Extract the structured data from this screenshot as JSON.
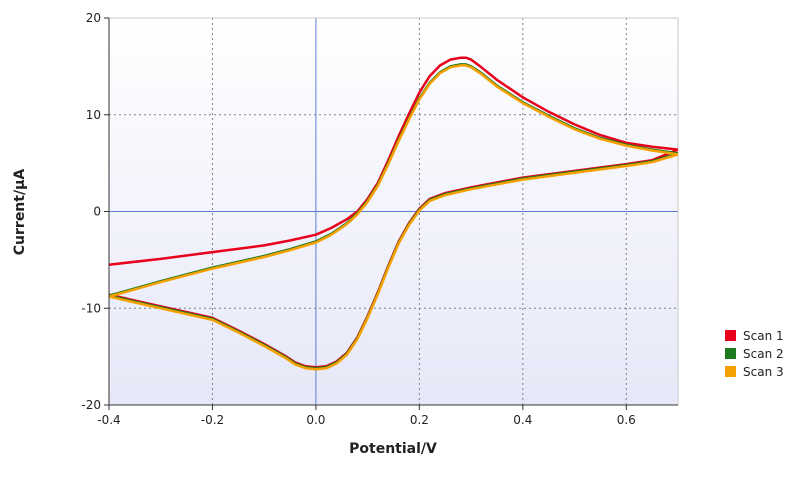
{
  "chart_data": {
    "type": "line",
    "title": "",
    "xlabel": "Potential/V",
    "ylabel": "Current/μA",
    "xlim": [
      -0.4,
      0.7
    ],
    "ylim": [
      -20,
      20
    ],
    "xticks": [
      -0.4,
      -0.2,
      0.0,
      0.2,
      0.4,
      0.6
    ],
    "yticks": [
      -20,
      -10,
      0,
      10,
      20
    ],
    "xtick_labels": [
      "-0.4",
      "-0.2",
      "0.0",
      "0.2",
      "0.4",
      "0.6"
    ],
    "ytick_labels": [
      "-20",
      "-10",
      "0",
      "10",
      "20"
    ],
    "grid": true,
    "zero_lines": true,
    "legend_position": "right",
    "series": [
      {
        "name": "Scan 1",
        "color": "#e8001c",
        "x": [
          -0.4,
          -0.3,
          -0.2,
          -0.1,
          -0.05,
          0.0,
          0.03,
          0.06,
          0.08,
          0.1,
          0.12,
          0.14,
          0.16,
          0.18,
          0.2,
          0.22,
          0.24,
          0.26,
          0.28,
          0.29,
          0.3,
          0.32,
          0.35,
          0.4,
          0.45,
          0.5,
          0.55,
          0.6,
          0.65,
          0.7,
          0.65,
          0.6,
          0.5,
          0.4,
          0.3,
          0.25,
          0.22,
          0.2,
          0.18,
          0.16,
          0.14,
          0.12,
          0.1,
          0.08,
          0.06,
          0.04,
          0.02,
          0.0,
          -0.02,
          -0.04,
          -0.06,
          -0.1,
          -0.15,
          -0.2,
          -0.3,
          -0.4
        ],
        "y": [
          -5.5,
          -4.9,
          -4.2,
          -3.5,
          -3.0,
          -2.4,
          -1.7,
          -0.8,
          0.0,
          1.3,
          3.0,
          5.3,
          7.8,
          10.1,
          12.3,
          14.0,
          15.1,
          15.7,
          15.9,
          15.9,
          15.7,
          14.9,
          13.6,
          11.8,
          10.3,
          9.0,
          7.9,
          7.1,
          6.7,
          6.4,
          5.3,
          4.9,
          4.2,
          3.5,
          2.5,
          1.9,
          1.3,
          0.3,
          -1.2,
          -3.1,
          -5.6,
          -8.3,
          -10.8,
          -13.0,
          -14.6,
          -15.5,
          -16.0,
          -16.1,
          -16.0,
          -15.6,
          -14.9,
          -13.7,
          -12.3,
          -11.0,
          -9.8,
          -8.6
        ]
      },
      {
        "name": "Scan 2",
        "color": "#1f7a1f",
        "x": [
          -0.4,
          -0.3,
          -0.2,
          -0.1,
          -0.05,
          0.0,
          0.03,
          0.06,
          0.08,
          0.1,
          0.12,
          0.14,
          0.16,
          0.18,
          0.2,
          0.22,
          0.24,
          0.26,
          0.28,
          0.29,
          0.3,
          0.32,
          0.35,
          0.4,
          0.45,
          0.5,
          0.55,
          0.6,
          0.65,
          0.7,
          0.65,
          0.6,
          0.5,
          0.4,
          0.3,
          0.25,
          0.22,
          0.2,
          0.18,
          0.16,
          0.14,
          0.12,
          0.1,
          0.08,
          0.06,
          0.04,
          0.02,
          0.0,
          -0.02,
          -0.04,
          -0.06,
          -0.1,
          -0.15,
          -0.2,
          -0.3,
          -0.4
        ],
        "y": [
          -8.7,
          -7.2,
          -5.8,
          -4.6,
          -3.9,
          -3.1,
          -2.3,
          -1.2,
          -0.2,
          1.1,
          2.8,
          5.0,
          7.4,
          9.6,
          11.7,
          13.3,
          14.4,
          15.0,
          15.2,
          15.2,
          15.0,
          14.3,
          13.0,
          11.3,
          9.9,
          8.6,
          7.6,
          6.9,
          6.4,
          6.0,
          5.2,
          4.8,
          4.1,
          3.4,
          2.4,
          1.8,
          1.2,
          0.2,
          -1.3,
          -3.2,
          -5.7,
          -8.4,
          -10.9,
          -13.1,
          -14.7,
          -15.6,
          -16.1,
          -16.2,
          -16.1,
          -15.7,
          -15.0,
          -13.8,
          -12.4,
          -11.1,
          -9.9,
          -8.7
        ]
      },
      {
        "name": "Scan 3",
        "color": "#f5a000",
        "x": [
          -0.4,
          -0.3,
          -0.2,
          -0.1,
          -0.05,
          0.0,
          0.03,
          0.06,
          0.08,
          0.1,
          0.12,
          0.14,
          0.16,
          0.18,
          0.2,
          0.22,
          0.24,
          0.26,
          0.28,
          0.29,
          0.3,
          0.32,
          0.35,
          0.4,
          0.45,
          0.5,
          0.55,
          0.6,
          0.65,
          0.7,
          0.65,
          0.6,
          0.5,
          0.4,
          0.3,
          0.25,
          0.22,
          0.2,
          0.18,
          0.16,
          0.14,
          0.12,
          0.1,
          0.08,
          0.06,
          0.04,
          0.02,
          0.0,
          -0.02,
          -0.04,
          -0.06,
          -0.1,
          -0.15,
          -0.2,
          -0.3,
          -0.4
        ],
        "y": [
          -8.8,
          -7.3,
          -5.9,
          -4.7,
          -4.0,
          -3.2,
          -2.4,
          -1.3,
          -0.3,
          1.0,
          2.7,
          4.9,
          7.3,
          9.5,
          11.6,
          13.2,
          14.3,
          14.9,
          15.1,
          15.1,
          14.9,
          14.2,
          12.9,
          11.2,
          9.8,
          8.5,
          7.5,
          6.8,
          6.3,
          5.9,
          5.1,
          4.7,
          4.0,
          3.3,
          2.3,
          1.7,
          1.1,
          0.1,
          -1.4,
          -3.3,
          -5.8,
          -8.5,
          -11.0,
          -13.2,
          -14.8,
          -15.7,
          -16.2,
          -16.3,
          -16.2,
          -15.8,
          -15.1,
          -13.9,
          -12.5,
          -11.2,
          -10.0,
          -8.8
        ]
      }
    ]
  },
  "colors": {
    "plot_background_top": "#ffffff",
    "plot_background_bottom": "#e6e8f8",
    "grid": "#808080",
    "zero_line": "#5b7fd6",
    "axis": "#333333"
  }
}
